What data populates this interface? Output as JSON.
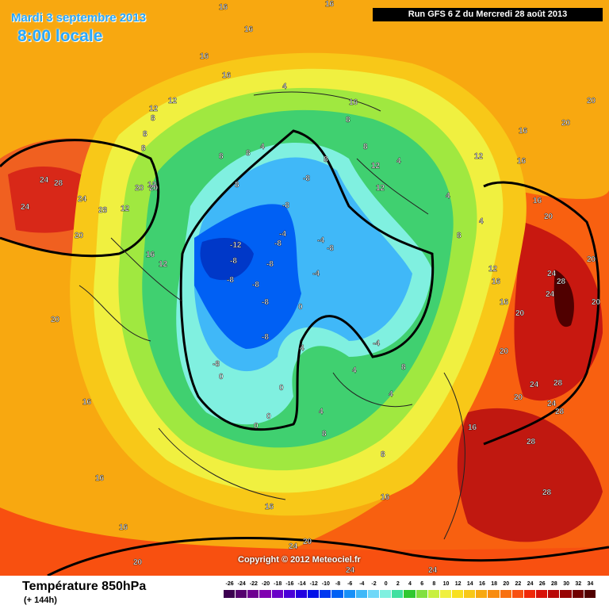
{
  "header": {
    "date": "Mardi 3 septembre 2013",
    "time": "8:00 locale",
    "run": "Run GFS 6 Z du Mercredi 28 août 2013"
  },
  "copyright": "Copyright © 2012 Meteociel.fr",
  "footer": {
    "title": "Température 850hPa",
    "subtitle": "(+ 144h)"
  },
  "scale": {
    "values": [
      "-26",
      "-24",
      "-22",
      "-20",
      "-18",
      "-16",
      "-14",
      "-12",
      "-10",
      "-8",
      "-6",
      "-4",
      "-2",
      "0",
      "2",
      "4",
      "6",
      "8",
      "10",
      "12",
      "14",
      "16",
      "18",
      "20",
      "22",
      "24",
      "26",
      "28",
      "30",
      "32",
      "34"
    ],
    "colors": [
      "#3c0050",
      "#55006e",
      "#6e0090",
      "#8000b0",
      "#6a00c8",
      "#4a00d8",
      "#2200e0",
      "#0010e8",
      "#0038f0",
      "#0060f4",
      "#1890f8",
      "#40b8f8",
      "#70d8f8",
      "#80f0e0",
      "#40e0a0",
      "#30c830",
      "#80e040",
      "#c8f040",
      "#f0f040",
      "#f8e020",
      "#f8c818",
      "#f8a810",
      "#f88c10",
      "#f87010",
      "#f85010",
      "#f02808",
      "#d81008",
      "#b80808",
      "#980404",
      "#700000",
      "#500000"
    ]
  },
  "contour_labels": [
    "-12",
    "-8",
    "-8",
    "-8",
    "-8",
    "-8",
    "-8",
    "-8",
    "-8",
    "-8",
    "-8",
    "-8",
    "-4",
    "-4",
    "-4",
    "-4",
    "0",
    "0",
    "0",
    "0",
    "0",
    "4",
    "4",
    "4",
    "4",
    "4",
    "4",
    "4",
    "4",
    "4",
    "8",
    "8",
    "8",
    "8",
    "8",
    "8",
    "8",
    "8",
    "8",
    "8",
    "8",
    "8",
    "8",
    "12",
    "12",
    "12",
    "12",
    "12",
    "12",
    "12",
    "12",
    "12",
    "16",
    "16",
    "16",
    "16",
    "16",
    "16",
    "16",
    "16",
    "16",
    "16",
    "16",
    "16",
    "16",
    "16",
    "16",
    "16",
    "16",
    "16",
    "20",
    "20",
    "20",
    "20",
    "20",
    "20",
    "20",
    "20",
    "20",
    "20",
    "20",
    "20",
    "20",
    "20",
    "24",
    "24",
    "24",
    "24",
    "24",
    "24",
    "24",
    "24",
    "24",
    "24",
    "28",
    "28",
    "28",
    "28",
    "28",
    "28",
    "28"
  ],
  "colors": {
    "run_bg": "#000000",
    "title_blue": "#29a8ff"
  }
}
